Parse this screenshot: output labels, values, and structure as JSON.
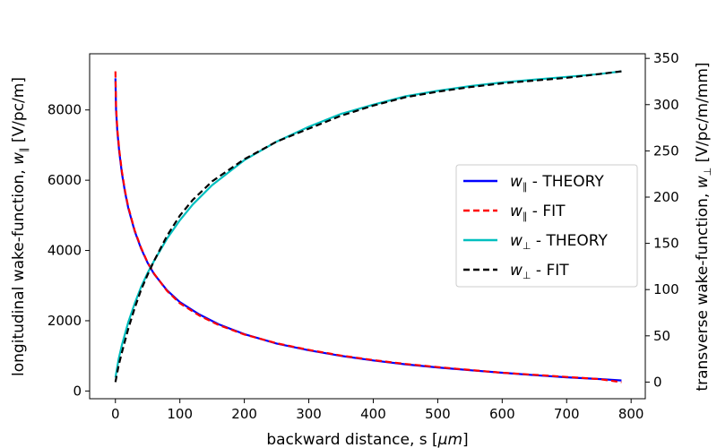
{
  "chart_data": {
    "type": "line",
    "xlabel": {
      "text": "backward distance, s [",
      "math": "μm",
      "suffix": "]"
    },
    "ylabel_left": {
      "text": "longitudinal wake-function, ",
      "sym": "w",
      "sub": "∥",
      "suffix": "  [V/pc/m]"
    },
    "ylabel_right": {
      "text": "transverse wake-function, ",
      "sym": "w",
      "sub": "⊥",
      "suffix": " [V/pc/m/mm]"
    },
    "xlim": [
      -40,
      822
    ],
    "ylim_left": [
      -220,
      9600
    ],
    "ylim_right": [
      -18,
      355
    ],
    "x_ticks": [
      0,
      100,
      200,
      300,
      400,
      500,
      600,
      700,
      800
    ],
    "y_ticks_left": [
      0,
      2000,
      4000,
      6000,
      8000
    ],
    "y_ticks_right": [
      0,
      50,
      100,
      150,
      200,
      250,
      300,
      350
    ],
    "grid": false,
    "legend_position": "center-right",
    "series": [
      {
        "name": {
          "sym": "w",
          "sub": "∥",
          "rest": " - THEORY"
        },
        "axis": "left",
        "color": "#0000ff",
        "style": "solid",
        "x": [
          0,
          1,
          3,
          6,
          10,
          15,
          20,
          30,
          40,
          50,
          60,
          80,
          100,
          130,
          160,
          200,
          250,
          300,
          350,
          400,
          450,
          500,
          550,
          600,
          650,
          700,
          750,
          785
        ],
        "y": [
          8900,
          8000,
          7400,
          6800,
          6200,
          5650,
          5200,
          4550,
          4050,
          3650,
          3330,
          2870,
          2530,
          2180,
          1900,
          1620,
          1350,
          1160,
          1000,
          870,
          760,
          670,
          590,
          520,
          450,
          390,
          340,
          300
        ]
      },
      {
        "name": {
          "sym": "w",
          "sub": "∥",
          "rest": " - FIT"
        },
        "axis": "left",
        "color": "#ff0000",
        "style": "dashed",
        "x": [
          0,
          1,
          3,
          6,
          10,
          15,
          20,
          30,
          40,
          50,
          60,
          80,
          100,
          130,
          160,
          200,
          250,
          300,
          350,
          400,
          450,
          500,
          550,
          600,
          650,
          700,
          750,
          785
        ],
        "y": [
          9100,
          8100,
          7450,
          6850,
          6250,
          5680,
          5230,
          4570,
          4070,
          3660,
          3340,
          2850,
          2500,
          2150,
          1880,
          1610,
          1360,
          1170,
          1010,
          880,
          770,
          680,
          600,
          520,
          460,
          400,
          340,
          250
        ]
      },
      {
        "name": {
          "sym": "w",
          "sub": "⊥",
          "rest": " - THEORY"
        },
        "axis": "right",
        "color": "#00bfbf",
        "style": "solid",
        "x": [
          0,
          5,
          10,
          20,
          30,
          40,
          50,
          60,
          80,
          100,
          120,
          150,
          200,
          250,
          300,
          350,
          400,
          450,
          500,
          550,
          600,
          650,
          700,
          750,
          785
        ],
        "y": [
          5,
          25,
          40,
          65,
          85,
          103,
          118,
          131,
          155,
          175,
          192,
          213,
          240,
          260,
          276,
          290,
          300,
          309,
          315,
          320,
          324,
          327,
          330,
          333,
          336
        ]
      },
      {
        "name": {
          "sym": "w",
          "sub": "⊥",
          "rest": " - FIT"
        },
        "axis": "right",
        "color": "#000000",
        "style": "dashed",
        "x": [
          0,
          5,
          10,
          20,
          30,
          40,
          50,
          60,
          80,
          100,
          120,
          150,
          200,
          250,
          300,
          350,
          400,
          450,
          500,
          550,
          600,
          650,
          700,
          750,
          785
        ],
        "y": [
          0,
          18,
          32,
          58,
          80,
          100,
          116,
          131,
          158,
          180,
          197,
          217,
          241,
          260,
          274,
          288,
          299,
          308,
          314,
          319,
          323,
          326,
          329,
          333,
          336
        ]
      }
    ]
  }
}
